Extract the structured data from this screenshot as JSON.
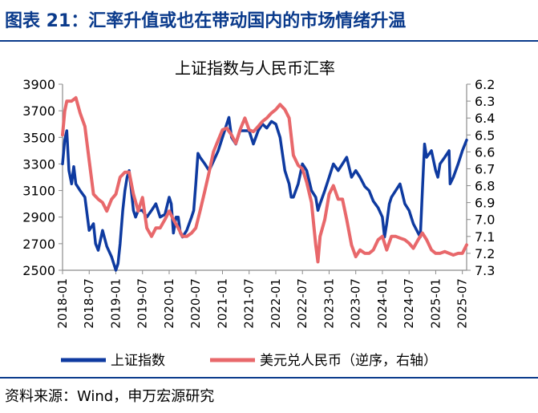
{
  "figure": {
    "title": "图表 21：汇率升值或也在带动国内的市场情绪升温",
    "source": "资料来源：Wind，申万宏源研究",
    "colors": {
      "title": "#0b3b8c",
      "rule": "#0b3b8c"
    }
  },
  "chart_data": {
    "type": "line",
    "title": "上证指数与人民币汇率",
    "grid": false,
    "legend_position": "bottom",
    "x_ticks": [
      "2018-01",
      "2018-07",
      "2019-01",
      "2019-07",
      "2020-01",
      "2020-07",
      "2021-01",
      "2021-07",
      "2022-01",
      "2022-07",
      "2023-01",
      "2023-07",
      "2024-01",
      "2024-07",
      "2025-01",
      "2025-07"
    ],
    "x_range": [
      2018.0,
      2025.58
    ],
    "left_axis": {
      "ylim": [
        2500,
        3900
      ],
      "ticks": [
        "3900",
        "3700",
        "3500",
        "3300",
        "3100",
        "2900",
        "2700",
        "2500"
      ]
    },
    "right_axis": {
      "ylim": [
        6.2,
        7.3
      ],
      "inverted": true,
      "ticks": [
        "6.2",
        "6.3",
        "6.4",
        "6.5",
        "6.6",
        "6.7",
        "6.8",
        "6.9",
        "7.0",
        "7.1",
        "7.2",
        "7.3"
      ]
    },
    "series": [
      {
        "name": "上证指数",
        "axis": "left",
        "color": "#0e3aa0",
        "x": [
          2018.0,
          2018.04,
          2018.08,
          2018.12,
          2018.17,
          2018.21,
          2018.25,
          2018.33,
          2018.42,
          2018.5,
          2018.58,
          2018.62,
          2018.67,
          2018.75,
          2018.83,
          2018.92,
          2019.0,
          2019.04,
          2019.08,
          2019.13,
          2019.17,
          2019.21,
          2019.25,
          2019.29,
          2019.33,
          2019.37,
          2019.42,
          2019.5,
          2019.58,
          2019.67,
          2019.75,
          2019.83,
          2019.92,
          2020.0,
          2020.04,
          2020.08,
          2020.13,
          2020.17,
          2020.21,
          2020.25,
          2020.33,
          2020.42,
          2020.46,
          2020.5,
          2020.54,
          2020.58,
          2020.67,
          2020.75,
          2020.83,
          2020.92,
          2021.0,
          2021.08,
          2021.12,
          2021.17,
          2021.25,
          2021.33,
          2021.42,
          2021.5,
          2021.58,
          2021.67,
          2021.75,
          2021.83,
          2021.92,
          2022.0,
          2022.08,
          2022.17,
          2022.21,
          2022.25,
          2022.29,
          2022.33,
          2022.42,
          2022.5,
          2022.58,
          2022.67,
          2022.75,
          2022.79,
          2022.83,
          2022.92,
          2023.0,
          2023.08,
          2023.17,
          2023.25,
          2023.33,
          2023.42,
          2023.5,
          2023.58,
          2023.67,
          2023.75,
          2023.83,
          2023.92,
          2024.0,
          2024.04,
          2024.08,
          2024.13,
          2024.17,
          2024.25,
          2024.33,
          2024.42,
          2024.5,
          2024.58,
          2024.67,
          2024.71,
          2024.75,
          2024.79,
          2024.83,
          2024.92,
          2025.0,
          2025.04,
          2025.08,
          2025.17,
          2025.25,
          2025.27,
          2025.33,
          2025.42,
          2025.5,
          2025.58
        ],
        "y": [
          3300,
          3480,
          3550,
          3250,
          3150,
          3280,
          3150,
          3100,
          3050,
          2800,
          2850,
          2700,
          2650,
          2800,
          2680,
          2600,
          2500,
          2550,
          2700,
          2950,
          3100,
          3200,
          3250,
          3100,
          2950,
          2900,
          2950,
          2950,
          2900,
          2950,
          3000,
          2900,
          2920,
          3050,
          3000,
          2780,
          2900,
          2900,
          2780,
          2750,
          2800,
          2900,
          2950,
          3150,
          3380,
          3350,
          3300,
          3250,
          3320,
          3400,
          3500,
          3600,
          3650,
          3500,
          3450,
          3550,
          3550,
          3550,
          3450,
          3550,
          3600,
          3570,
          3620,
          3600,
          3500,
          3250,
          3200,
          3150,
          3050,
          3050,
          3150,
          3300,
          3250,
          3100,
          3050,
          2950,
          3000,
          3100,
          3200,
          3300,
          3250,
          3300,
          3350,
          3200,
          3250,
          3200,
          3130,
          3100,
          3020,
          2970,
          2900,
          2750,
          2850,
          3000,
          3050,
          3100,
          3150,
          3000,
          2950,
          2850,
          2780,
          2750,
          3100,
          3450,
          3350,
          3400,
          3250,
          3200,
          3300,
          3350,
          3400,
          3150,
          3200,
          3300,
          3400,
          3480
        ],
        "points": [
          [
            2018.0,
            3300
          ],
          [
            2018.04,
            3480
          ],
          [
            2018.08,
            3550
          ],
          [
            2018.12,
            3250
          ],
          [
            2018.17,
            3150
          ],
          [
            2018.21,
            3280
          ],
          [
            2018.25,
            3150
          ],
          [
            2018.33,
            3100
          ],
          [
            2018.42,
            3050
          ],
          [
            2018.5,
            2800
          ],
          [
            2018.58,
            2850
          ],
          [
            2018.62,
            2700
          ],
          [
            2018.67,
            2650
          ],
          [
            2018.75,
            2800
          ],
          [
            2018.83,
            2680
          ],
          [
            2018.92,
            2600
          ],
          [
            2019.0,
            2500
          ],
          [
            2019.04,
            2550
          ],
          [
            2019.08,
            2700
          ],
          [
            2019.13,
            2950
          ],
          [
            2019.17,
            3100
          ],
          [
            2019.21,
            3200
          ],
          [
            2019.25,
            3250
          ],
          [
            2019.29,
            3100
          ],
          [
            2019.33,
            2950
          ],
          [
            2019.37,
            2900
          ],
          [
            2019.42,
            2950
          ],
          [
            2019.5,
            2950
          ],
          [
            2019.58,
            2900
          ],
          [
            2019.67,
            2950
          ],
          [
            2019.75,
            3000
          ],
          [
            2019.83,
            2900
          ],
          [
            2019.92,
            2920
          ],
          [
            2020.0,
            3050
          ],
          [
            2020.04,
            3000
          ],
          [
            2020.08,
            2780
          ],
          [
            2020.13,
            2900
          ],
          [
            2020.17,
            2900
          ],
          [
            2020.21,
            2780
          ],
          [
            2020.25,
            2750
          ],
          [
            2020.33,
            2800
          ],
          [
            2020.42,
            2900
          ],
          [
            2020.46,
            2950
          ],
          [
            2020.5,
            3150
          ],
          [
            2020.54,
            3380
          ],
          [
            2020.58,
            3350
          ],
          [
            2020.67,
            3300
          ],
          [
            2020.75,
            3250
          ],
          [
            2020.83,
            3320
          ],
          [
            2020.92,
            3400
          ],
          [
            2021.0,
            3500
          ],
          [
            2021.08,
            3600
          ],
          [
            2021.12,
            3650
          ],
          [
            2021.17,
            3500
          ],
          [
            2021.25,
            3450
          ],
          [
            2021.33,
            3550
          ],
          [
            2021.42,
            3550
          ],
          [
            2021.5,
            3550
          ],
          [
            2021.58,
            3450
          ],
          [
            2021.67,
            3550
          ],
          [
            2021.75,
            3600
          ],
          [
            2021.83,
            3570
          ],
          [
            2021.92,
            3620
          ],
          [
            2022.0,
            3600
          ],
          [
            2022.08,
            3500
          ],
          [
            2022.17,
            3250
          ],
          [
            2022.21,
            3200
          ],
          [
            2022.25,
            3150
          ],
          [
            2022.29,
            3050
          ],
          [
            2022.33,
            3050
          ],
          [
            2022.42,
            3150
          ],
          [
            2022.5,
            3300
          ],
          [
            2022.58,
            3250
          ],
          [
            2022.67,
            3100
          ],
          [
            2022.75,
            3050
          ],
          [
            2022.79,
            2950
          ],
          [
            2022.83,
            3000
          ],
          [
            2022.92,
            3100
          ],
          [
            2023.0,
            3200
          ],
          [
            2023.08,
            3300
          ],
          [
            2023.17,
            3250
          ],
          [
            2023.25,
            3300
          ],
          [
            2023.33,
            3350
          ],
          [
            2023.42,
            3200
          ],
          [
            2023.5,
            3250
          ],
          [
            2023.58,
            3200
          ],
          [
            2023.67,
            3130
          ],
          [
            2023.75,
            3100
          ],
          [
            2023.83,
            3020
          ],
          [
            2023.92,
            2970
          ],
          [
            2024.0,
            2900
          ],
          [
            2024.04,
            2750
          ],
          [
            2024.08,
            2850
          ],
          [
            2024.13,
            3000
          ],
          [
            2024.17,
            3050
          ],
          [
            2024.25,
            3100
          ],
          [
            2024.33,
            3150
          ],
          [
            2024.42,
            3000
          ],
          [
            2024.5,
            2950
          ],
          [
            2024.58,
            2850
          ],
          [
            2024.67,
            2780
          ],
          [
            2024.71,
            2750
          ],
          [
            2024.75,
            3100
          ],
          [
            2024.79,
            3450
          ],
          [
            2024.83,
            3350
          ],
          [
            2024.92,
            3400
          ],
          [
            2025.0,
            3250
          ],
          [
            2025.04,
            3200
          ],
          [
            2025.08,
            3300
          ],
          [
            2025.17,
            3350
          ],
          [
            2025.25,
            3400
          ],
          [
            2025.27,
            3150
          ],
          [
            2025.33,
            3200
          ],
          [
            2025.42,
            3300
          ],
          [
            2025.5,
            3400
          ],
          [
            2025.58,
            3480
          ]
        ]
      },
      {
        "name": "美元兑人民币（逆序，右轴）",
        "axis": "right",
        "color": "#e8686b",
        "points": [
          [
            2018.0,
            6.5
          ],
          [
            2018.04,
            6.36
          ],
          [
            2018.08,
            6.3
          ],
          [
            2018.17,
            6.3
          ],
          [
            2018.25,
            6.28
          ],
          [
            2018.33,
            6.37
          ],
          [
            2018.42,
            6.45
          ],
          [
            2018.5,
            6.65
          ],
          [
            2018.58,
            6.85
          ],
          [
            2018.67,
            6.88
          ],
          [
            2018.75,
            6.9
          ],
          [
            2018.83,
            6.95
          ],
          [
            2018.92,
            6.88
          ],
          [
            2019.0,
            6.85
          ],
          [
            2019.08,
            6.75
          ],
          [
            2019.17,
            6.72
          ],
          [
            2019.25,
            6.72
          ],
          [
            2019.33,
            6.85
          ],
          [
            2019.42,
            6.95
          ],
          [
            2019.5,
            6.87
          ],
          [
            2019.58,
            7.05
          ],
          [
            2019.67,
            7.1
          ],
          [
            2019.75,
            7.05
          ],
          [
            2019.83,
            7.05
          ],
          [
            2019.92,
            7.0
          ],
          [
            2020.0,
            6.95
          ],
          [
            2020.08,
            7.0
          ],
          [
            2020.17,
            7.05
          ],
          [
            2020.25,
            7.1
          ],
          [
            2020.33,
            7.1
          ],
          [
            2020.42,
            7.08
          ],
          [
            2020.5,
            7.05
          ],
          [
            2020.58,
            6.95
          ],
          [
            2020.67,
            6.83
          ],
          [
            2020.75,
            6.72
          ],
          [
            2020.83,
            6.6
          ],
          [
            2020.92,
            6.53
          ],
          [
            2021.0,
            6.47
          ],
          [
            2021.08,
            6.46
          ],
          [
            2021.17,
            6.5
          ],
          [
            2021.25,
            6.55
          ],
          [
            2021.33,
            6.47
          ],
          [
            2021.42,
            6.4
          ],
          [
            2021.5,
            6.47
          ],
          [
            2021.58,
            6.48
          ],
          [
            2021.67,
            6.45
          ],
          [
            2021.75,
            6.42
          ],
          [
            2021.83,
            6.4
          ],
          [
            2021.92,
            6.37
          ],
          [
            2022.0,
            6.35
          ],
          [
            2022.08,
            6.32
          ],
          [
            2022.17,
            6.35
          ],
          [
            2022.25,
            6.4
          ],
          [
            2022.33,
            6.62
          ],
          [
            2022.42,
            6.68
          ],
          [
            2022.5,
            6.7
          ],
          [
            2022.58,
            6.78
          ],
          [
            2022.67,
            6.9
          ],
          [
            2022.75,
            7.15
          ],
          [
            2022.79,
            7.25
          ],
          [
            2022.83,
            7.1
          ],
          [
            2022.92,
            7.0
          ],
          [
            2023.0,
            6.85
          ],
          [
            2023.08,
            6.8
          ],
          [
            2023.17,
            6.88
          ],
          [
            2023.25,
            6.88
          ],
          [
            2023.33,
            7.0
          ],
          [
            2023.42,
            7.15
          ],
          [
            2023.5,
            7.22
          ],
          [
            2023.58,
            7.18
          ],
          [
            2023.67,
            7.2
          ],
          [
            2023.75,
            7.2
          ],
          [
            2023.83,
            7.18
          ],
          [
            2023.92,
            7.12
          ],
          [
            2024.0,
            7.1
          ],
          [
            2024.08,
            7.18
          ],
          [
            2024.17,
            7.1
          ],
          [
            2024.25,
            7.1
          ],
          [
            2024.33,
            7.11
          ],
          [
            2024.42,
            7.12
          ],
          [
            2024.5,
            7.14
          ],
          [
            2024.58,
            7.17
          ],
          [
            2024.67,
            7.12
          ],
          [
            2024.75,
            7.08
          ],
          [
            2024.83,
            7.12
          ],
          [
            2024.92,
            7.18
          ],
          [
            2025.0,
            7.2
          ],
          [
            2025.08,
            7.2
          ],
          [
            2025.17,
            7.19
          ],
          [
            2025.25,
            7.2
          ],
          [
            2025.33,
            7.21
          ],
          [
            2025.42,
            7.2
          ],
          [
            2025.5,
            7.2
          ],
          [
            2025.58,
            7.15
          ]
        ]
      }
    ]
  }
}
